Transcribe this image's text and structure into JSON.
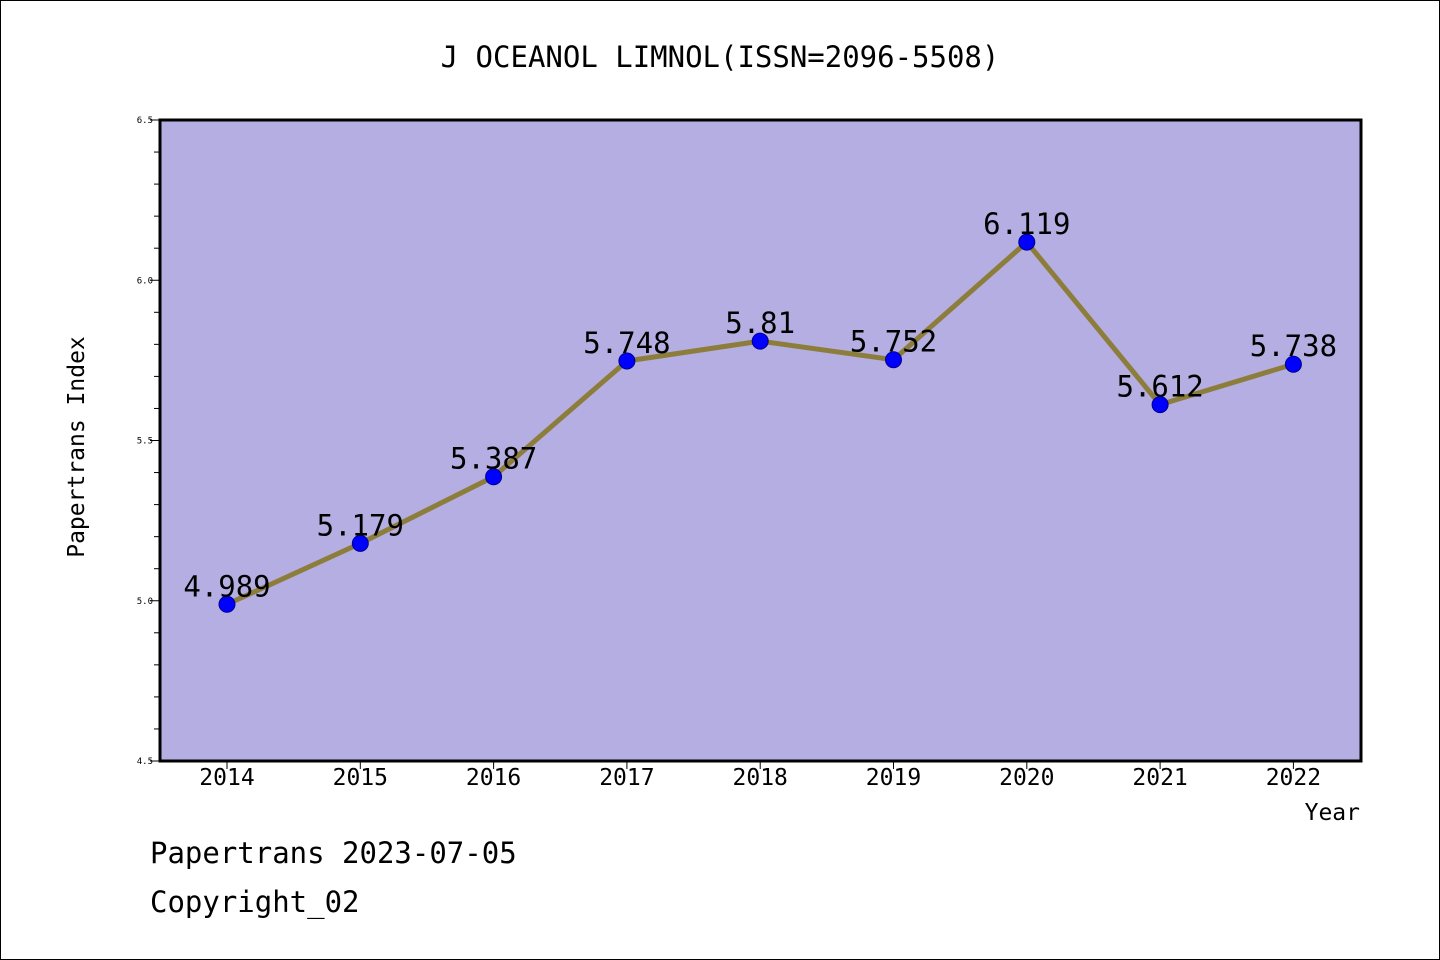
{
  "chart_data": {
    "type": "line",
    "title": "J OCEANOL LIMNOL(ISSN=2096-5508)",
    "xlabel": "Year",
    "ylabel": "Papertrans Index",
    "categories": [
      "2014",
      "2015",
      "2016",
      "2017",
      "2018",
      "2019",
      "2020",
      "2021",
      "2022"
    ],
    "series": [
      {
        "values": [
          4.989,
          5.179,
          5.387,
          5.748,
          5.81,
          5.752,
          6.119,
          5.612,
          5.738
        ],
        "labels": [
          "4.989",
          "5.179",
          "5.387",
          "5.748",
          "5.81",
          "5.752",
          "6.119",
          "5.612",
          "5.738"
        ]
      }
    ],
    "ylim": [
      4.5,
      6.5
    ],
    "yticks": [
      "4.5",
      "5.0",
      "5.5",
      "6.0",
      "6.5"
    ],
    "grid": false,
    "colors": {
      "plot_background": "#b4aee2",
      "line": "#8d7d3a",
      "marker": "#0000ff"
    }
  },
  "footer": {
    "line1": "Papertrans 2023-07-05",
    "line2": "Copyright_02"
  }
}
